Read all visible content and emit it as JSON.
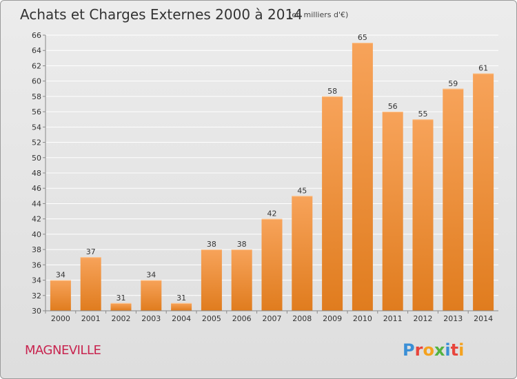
{
  "chart_data": {
    "type": "bar",
    "title": "Achats et Charges Externes 2000 à 2014",
    "subtitle": "(en milliers d'€)",
    "categories": [
      "2000",
      "2001",
      "2002",
      "2003",
      "2004",
      "2005",
      "2006",
      "2007",
      "2008",
      "2009",
      "2010",
      "2011",
      "2012",
      "2013",
      "2014"
    ],
    "values": [
      34,
      37,
      31,
      34,
      31,
      38,
      38,
      42,
      45,
      58,
      65,
      56,
      55,
      59,
      61
    ],
    "ylim": [
      30,
      66
    ],
    "yticks": [
      30,
      32,
      34,
      36,
      38,
      40,
      42,
      44,
      46,
      48,
      50,
      52,
      54,
      56,
      58,
      60,
      62,
      64,
      66
    ],
    "grid": true,
    "bar_color_top": "#f7a35a",
    "bar_color_bottom": "#e07c1e"
  },
  "footer": {
    "town": "MAGNEVILLE",
    "brand": "Proxiti",
    "brand_colors": [
      "#3a8fd6",
      "#e8453c",
      "#f4a21f",
      "#53b33f",
      "#3a8fd6",
      "#e8453c",
      "#f4a21f"
    ]
  }
}
